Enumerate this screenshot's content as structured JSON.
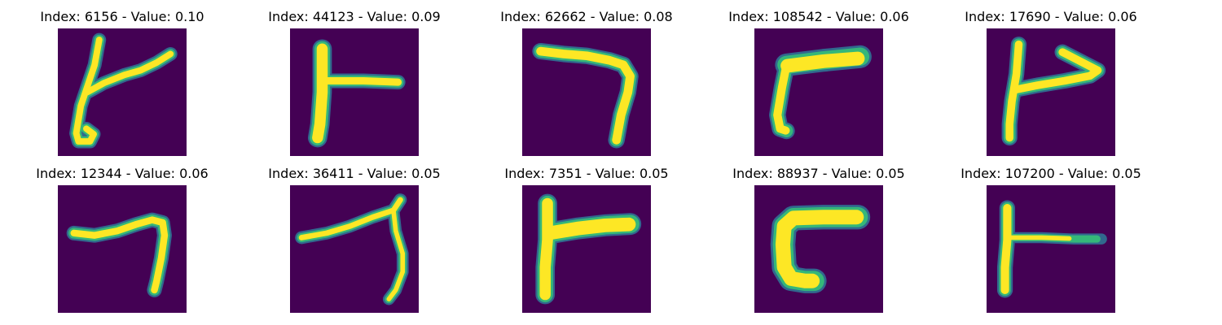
{
  "figure": {
    "colors": {
      "background": "#440154",
      "mid_low": "#31688e",
      "mid": "#35b779",
      "high": "#fde725"
    },
    "panels": [
      {
        "title": "Index: 6156 - Value: 0.10",
        "shape": "glyph-6156"
      },
      {
        "title": "Index: 44123 - Value: 0.09",
        "shape": "glyph-44123"
      },
      {
        "title": "Index: 62662 - Value: 0.08",
        "shape": "glyph-62662"
      },
      {
        "title": "Index: 108542 - Value: 0.06",
        "shape": "glyph-108542"
      },
      {
        "title": "Index: 17690 - Value: 0.06",
        "shape": "glyph-17690"
      },
      {
        "title": "Index: 12344 - Value: 0.06",
        "shape": "glyph-12344"
      },
      {
        "title": "Index: 36411 - Value: 0.05",
        "shape": "glyph-36411"
      },
      {
        "title": "Index: 7351 - Value: 0.05",
        "shape": "glyph-7351"
      },
      {
        "title": "Index: 88937 - Value: 0.05",
        "shape": "glyph-88937"
      },
      {
        "title": "Index: 107200 - Value: 0.05",
        "shape": "glyph-107200"
      }
    ]
  }
}
